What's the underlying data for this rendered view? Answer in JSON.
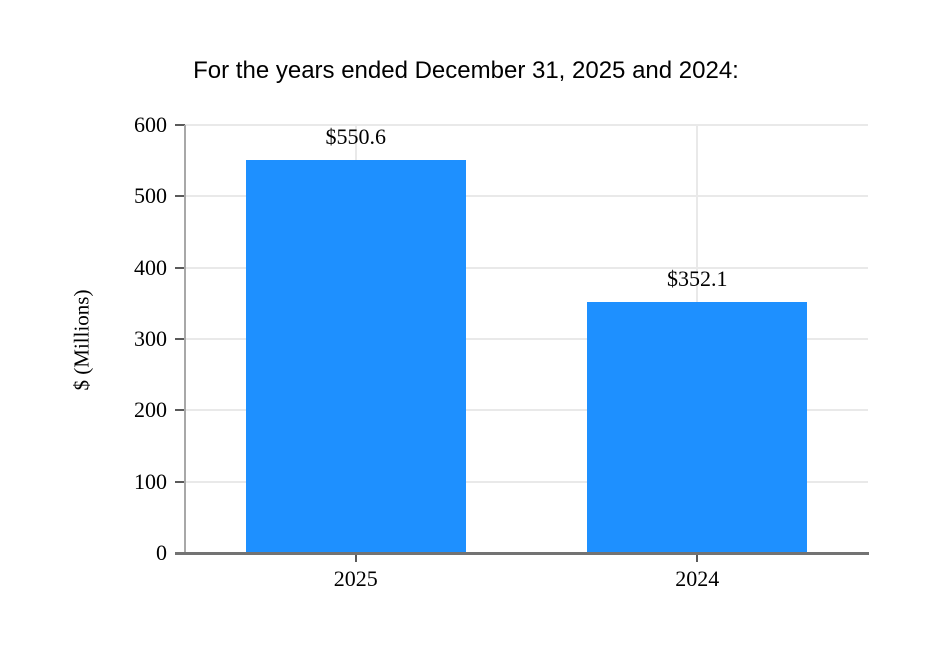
{
  "title": "For the years ended December 31, 2025 and 2024:",
  "chart_data": {
    "type": "bar",
    "title": "For the years ended December 31, 2025 and 2024:",
    "categories": [
      "2025",
      "2024"
    ],
    "values": [
      550.6,
      352.1
    ],
    "bar_labels": [
      "$550.6",
      "$352.1"
    ],
    "xlabel": "",
    "ylabel": "$ (Millions)",
    "ylim": [
      0,
      600
    ],
    "yticks": [
      0,
      100,
      200,
      300,
      400,
      500,
      600
    ],
    "grid": "horizontal gridlines at each 100 plus vertical gridlines at category centers",
    "legend_position": "none",
    "colors": {
      "bar": "#1E90FF",
      "grid": "#e9e9e9",
      "y_axis": "#a8a8a8",
      "x_axis": "#737373",
      "tick": "#5a5a5a",
      "text": "#000000"
    }
  }
}
